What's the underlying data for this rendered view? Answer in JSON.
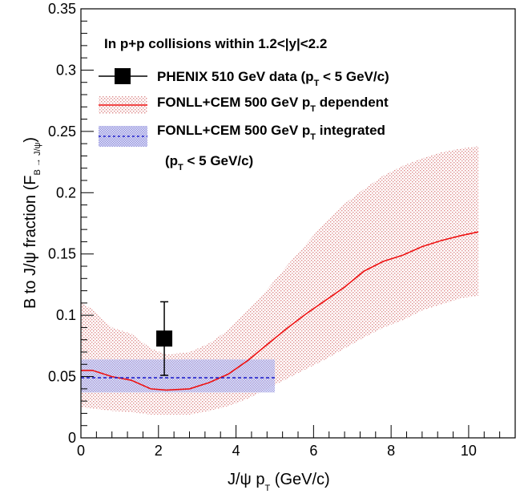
{
  "chart_data": {
    "type": "line",
    "title": "",
    "ylabel_main": "B to J/ψ fraction (F",
    "ylabel_sub": "B → J/ψ",
    "ylabel_close": ")",
    "xlabel_main": "J/ψ p",
    "xlabel_sub": "T",
    "xlabel_unit": " (GeV/c)",
    "xlim": [
      0,
      11.2
    ],
    "ylim": [
      0,
      0.35
    ],
    "x_ticks": [
      0,
      2,
      4,
      6,
      8,
      10
    ],
    "x_tick_labels": [
      "0",
      "2",
      "4",
      "6",
      "8",
      "10"
    ],
    "y_ticks": [
      0,
      0.05,
      0.1,
      0.15,
      0.2,
      0.25,
      0.3,
      0.35
    ],
    "y_tick_labels": [
      "0",
      "0.05",
      "0.1",
      "0.15",
      "0.2",
      "0.25",
      "0.3",
      "0.35"
    ],
    "grid": false,
    "legend_placement": "top-left",
    "annotation": "In p+p collisions within 1.2<|y|<2.2",
    "legend": {
      "data_main": "PHENIX 510 GeV data (p",
      "data_sub": "T",
      "data_tail": " < 5 GeV/c)",
      "dep_main": "FONLL+CEM 500 GeV p",
      "dep_sub": "T",
      "dep_tail": " dependent",
      "int_main": "FONLL+CEM 500 GeV p",
      "int_sub": "T",
      "int_tail": " integrated",
      "int2_open": "(p",
      "int2_sub": "T",
      "int2_tail": " < 5 GeV/c)"
    },
    "colors": {
      "data": "#000000",
      "dependent_line": "#ee1111",
      "dependent_band": "#e8a0a0",
      "integrated_line": "#2222cc",
      "integrated_band": "#a6a6e6"
    },
    "series": [
      {
        "kind": "data_point",
        "x": 2.15,
        "y": 0.081,
        "y_low": 0.051,
        "y_high": 0.111
      },
      {
        "kind": "band_with_line",
        "x": [
          0,
          0.3,
          0.8,
          1.3,
          1.8,
          2.2,
          2.8,
          3.3,
          3.8,
          4.3,
          4.8,
          5.3,
          5.8,
          6.3,
          6.8,
          7.3,
          7.8,
          8.3,
          8.8,
          9.3,
          9.8,
          10.25
        ],
        "y": [
          0.055,
          0.055,
          0.05,
          0.047,
          0.04,
          0.039,
          0.04,
          0.045,
          0.052,
          0.063,
          0.076,
          0.089,
          0.101,
          0.112,
          0.123,
          0.136,
          0.144,
          0.149,
          0.156,
          0.161,
          0.165,
          0.168
        ],
        "y_low": [
          0.025,
          0.024,
          0.022,
          0.021,
          0.019,
          0.019,
          0.019,
          0.022,
          0.026,
          0.032,
          0.04,
          0.048,
          0.056,
          0.064,
          0.073,
          0.082,
          0.09,
          0.096,
          0.104,
          0.109,
          0.114,
          0.116
        ],
        "y_high": [
          0.11,
          0.105,
          0.09,
          0.085,
          0.073,
          0.068,
          0.07,
          0.077,
          0.088,
          0.104,
          0.121,
          0.14,
          0.158,
          0.176,
          0.191,
          0.203,
          0.214,
          0.222,
          0.228,
          0.233,
          0.236,
          0.238
        ]
      },
      {
        "kind": "band_with_line",
        "x": [
          0,
          5
        ],
        "y": [
          0.049,
          0.049
        ],
        "y_low": [
          0.037,
          0.037
        ],
        "y_high": [
          0.064,
          0.064
        ]
      }
    ]
  }
}
